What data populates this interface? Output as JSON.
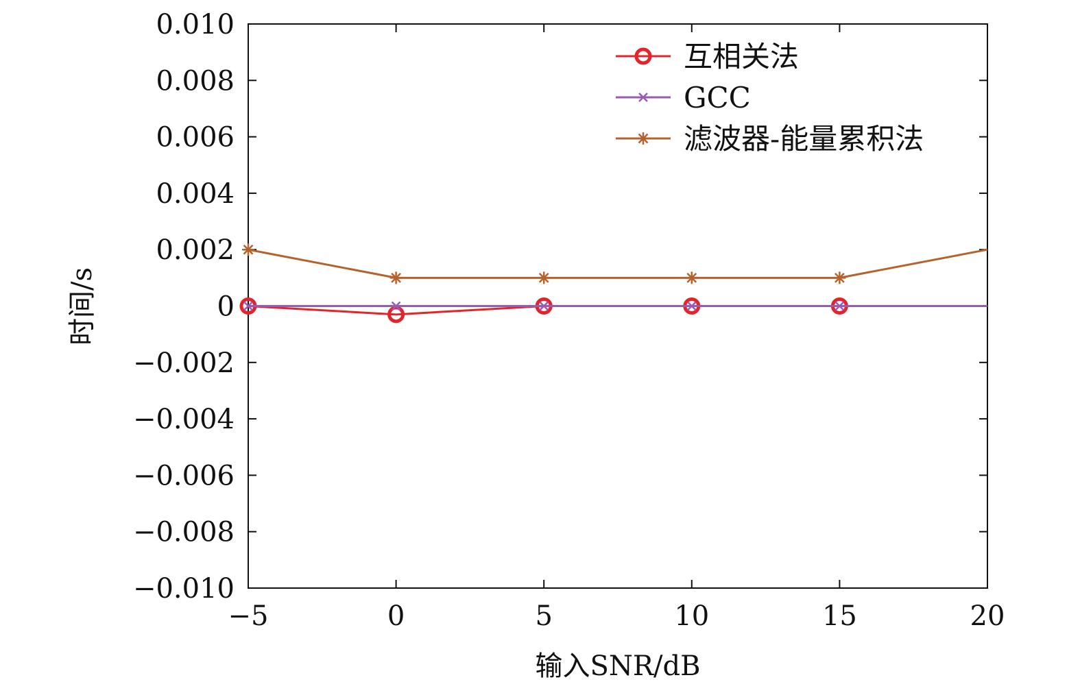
{
  "chart_data": {
    "type": "line",
    "xlabel": "输入SNR/dB",
    "ylabel": "时间/s",
    "xlim": [
      -5,
      20
    ],
    "ylim": [
      -0.01,
      0.01
    ],
    "x_ticks": [
      -5,
      0,
      5,
      10,
      15,
      20
    ],
    "y_ticks": [
      0.01,
      0.008,
      0.006,
      0.004,
      0.002,
      0,
      -0.002,
      -0.004,
      -0.006,
      -0.008,
      -0.01
    ],
    "x_tick_labels": [
      "−5",
      "0",
      "5",
      "10",
      "15",
      "20"
    ],
    "y_tick_labels": [
      "0.010",
      "0.008",
      "0.006",
      "0.004",
      "0.002",
      "0",
      "−0.002",
      "−0.004",
      "−0.006",
      "−0.008",
      "−0.010"
    ],
    "grid": false,
    "legend_position": "top-right",
    "x": [
      -5,
      0,
      5,
      10,
      15,
      20
    ],
    "series": [
      {
        "name": "互相关法",
        "values": [
          0,
          -0.0003,
          0,
          0,
          0,
          0
        ],
        "color": "#e3242b",
        "marker": "circle"
      },
      {
        "name": "GCC",
        "values": [
          0,
          0,
          0,
          0,
          0,
          0
        ],
        "color": "#9b59b6",
        "marker": "x"
      },
      {
        "name": "滤波器-能量累积法",
        "values": [
          0.002,
          0.001,
          0.001,
          0.001,
          0.001,
          0.002
        ],
        "color": "#b5622c",
        "marker": "asterisk"
      }
    ]
  }
}
